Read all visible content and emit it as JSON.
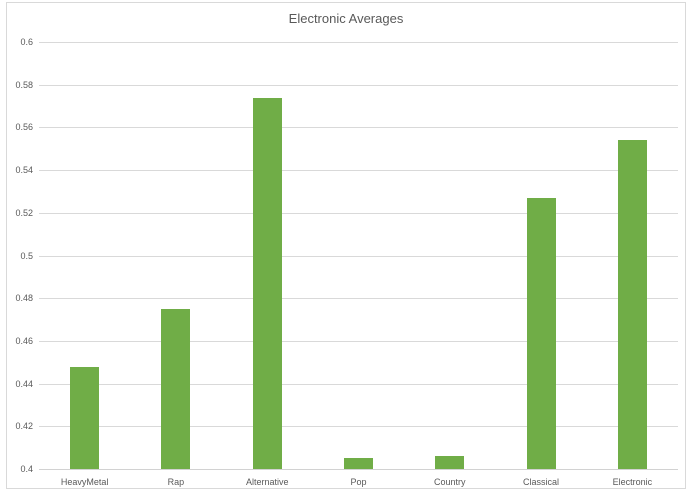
{
  "colors": {
    "bar": "#70AD47",
    "gridline": "#D9D9D9",
    "axis_line": "#D2D2D2",
    "text": "#595959",
    "border": "#D9D9D9",
    "background": "#FFFFFF"
  },
  "chart_data": {
    "type": "bar",
    "title": "Electronic Averages",
    "categories": [
      "HeavyMetal",
      "Rap",
      "Alternative",
      "Pop",
      "Country",
      "Classical",
      "Electronic"
    ],
    "values": [
      0.448,
      0.475,
      0.574,
      0.405,
      0.406,
      0.527,
      0.554
    ],
    "xlabel": "",
    "ylabel": "",
    "ylim": [
      0.4,
      0.6
    ],
    "ytick_interval": 0.02,
    "ytick_labels": [
      "0.4",
      "0.42",
      "0.44",
      "0.46",
      "0.48",
      "0.5",
      "0.52",
      "0.54",
      "0.56",
      "0.58",
      "0.6"
    ],
    "grid": true,
    "legend": false
  }
}
